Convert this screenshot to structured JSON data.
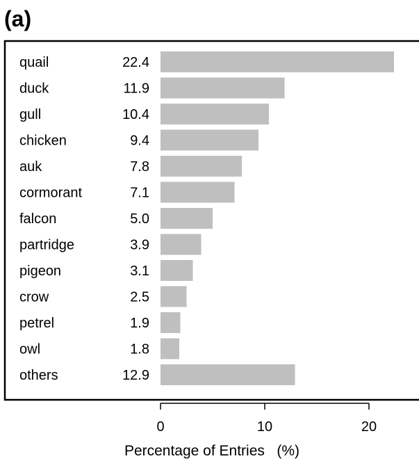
{
  "panel_label": "(a)",
  "colors": {
    "bar": "#bfbfbf",
    "frame": "#000000",
    "text": "#000000",
    "background": "#ffffff"
  },
  "chart_data": {
    "type": "bar",
    "orientation": "horizontal",
    "categories": [
      "quail",
      "duck",
      "gull",
      "chicken",
      "auk",
      "cormorant",
      "falcon",
      "partridge",
      "pigeon",
      "crow",
      "petrel",
      "owl",
      "others"
    ],
    "values": [
      22.4,
      11.9,
      10.4,
      9.4,
      7.8,
      7.1,
      5.0,
      3.9,
      3.1,
      2.5,
      1.9,
      1.8,
      12.9
    ],
    "value_labels": [
      "22.4",
      "11.9",
      "10.4",
      "9.4",
      "7.8",
      "7.1",
      "5.0",
      "3.9",
      "3.1",
      "2.5",
      "1.9",
      "1.8",
      "12.9"
    ],
    "xlabel": "Percentage of Entries   (%)",
    "xlim": [
      0,
      24
    ],
    "xticks": [
      0,
      10,
      20
    ],
    "xtick_labels": [
      "0",
      "10",
      "20"
    ],
    "grid": false,
    "legend": "none"
  }
}
